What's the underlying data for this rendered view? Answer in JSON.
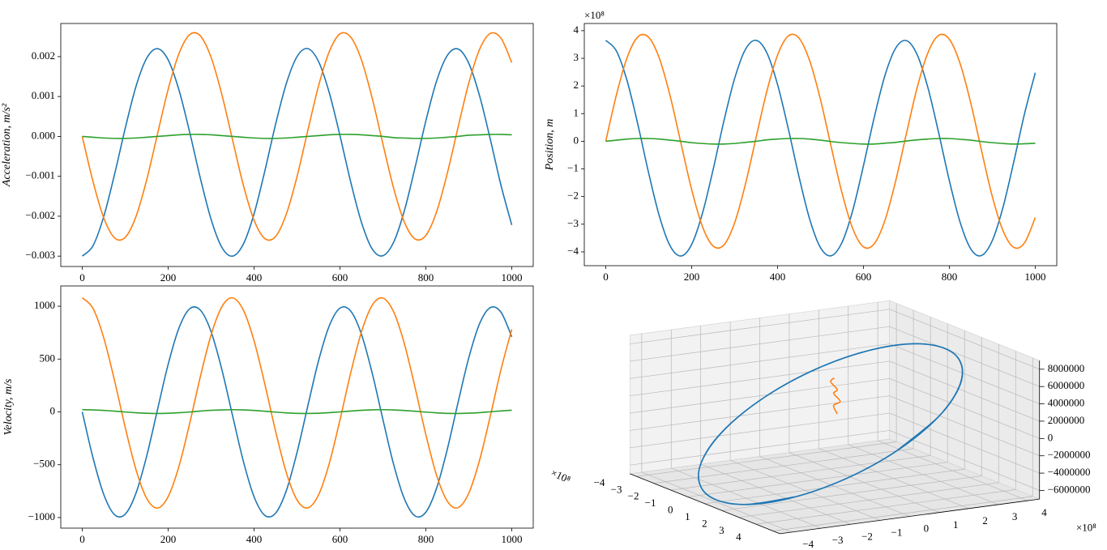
{
  "chart_data": [
    {
      "type": "line",
      "ylabel": "Acceleration, m/s²",
      "x": [
        0,
        25,
        50,
        75,
        100,
        125,
        150,
        175,
        200,
        225,
        250,
        275,
        300,
        325,
        350,
        375,
        400,
        425,
        450,
        475,
        500,
        525,
        550,
        575,
        600,
        625,
        650,
        675,
        700,
        725,
        750,
        775,
        800,
        825,
        850,
        875,
        900,
        925,
        950,
        975,
        1000
      ],
      "series": [
        {
          "color": "#1f77b4",
          "values": [
            -0.003,
            -0.00274,
            -0.00201,
            -0.00096,
            0.0002,
            0.00125,
            0.00196,
            0.0022,
            0.00192,
            0.00117,
            0.00011,
            -0.00105,
            -0.00208,
            -0.00278,
            -0.003,
            -0.0027,
            -0.00194,
            -0.00087,
            0.0003,
            0.00132,
            0.002,
            0.0022,
            0.00188,
            0.0011,
            2e-05,
            -0.00114,
            -0.00215,
            -0.00282,
            -0.00299,
            -0.00265,
            -0.00186,
            -0.00077,
            0.00039,
            0.00139,
            0.00203,
            0.00219,
            0.00183,
            0.00102,
            -7e-05,
            -0.00123,
            -0.00222
          ]
        },
        {
          "color": "#ff7f0e",
          "values": [
            0,
            -0.00113,
            -0.00204,
            -0.00254,
            -0.00253,
            -0.00201,
            -0.00109,
            5e-05,
            0.00118,
            0.00207,
            0.00255,
            0.00252,
            0.00198,
            0.00105,
            -9e-05,
            -0.00122,
            -0.0021,
            -0.00256,
            -0.00251,
            -0.00195,
            -0.00101,
            0.00014,
            0.00126,
            0.00212,
            0.00257,
            0.00249,
            0.00192,
            0.00096,
            -0.00019,
            -0.0013,
            -0.00215,
            -0.00257,
            -0.00248,
            -0.00189,
            -0.00092,
            0.00023,
            0.00134,
            0.00218,
            0.00258,
            0.00246,
            0.00185
          ]
        },
        {
          "color": "#2ca02c",
          "values": [
            0,
            -2e-05,
            -4e-05,
            -5e-05,
            -5e-05,
            -4e-05,
            -2e-05,
            0,
            2e-05,
            4e-05,
            5e-05,
            5e-05,
            4e-05,
            2e-05,
            0,
            -2e-05,
            -4e-05,
            -5e-05,
            -5e-05,
            -4e-05,
            -2e-05,
            0,
            2e-05,
            4e-05,
            5e-05,
            5e-05,
            4e-05,
            2e-05,
            0,
            -3e-05,
            -4e-05,
            -5e-05,
            -5e-05,
            -4e-05,
            -2e-05,
            0,
            3e-05,
            4e-05,
            5e-05,
            5e-05,
            4e-05
          ]
        }
      ],
      "xlim": [
        -50,
        1050
      ],
      "ylim": [
        -0.00326,
        0.00283
      ],
      "xticks": [
        0,
        200,
        400,
        600,
        800,
        1000
      ],
      "yticks": [
        {
          "value": -0.003,
          "label": "−0.003"
        },
        {
          "value": -0.002,
          "label": "−0.002"
        },
        {
          "value": -0.001,
          "label": "−0.001"
        },
        {
          "value": 0,
          "label": "0.000"
        },
        0.001,
        0.002
      ]
    },
    {
      "type": "line",
      "ylabel": "Position, m",
      "yoffset": "×10⁸",
      "x": [
        0,
        25,
        50,
        75,
        100,
        125,
        150,
        175,
        200,
        225,
        250,
        275,
        300,
        325,
        350,
        375,
        400,
        425,
        450,
        475,
        500,
        525,
        550,
        575,
        600,
        625,
        650,
        675,
        700,
        725,
        750,
        775,
        800,
        825,
        850,
        875,
        900,
        925,
        950,
        975,
        1000
      ],
      "series": [
        {
          "color": "#1f77b4",
          "values": [
            3.65,
            3.26,
            2.17,
            0.59,
            -1.16,
            -2.72,
            -3.79,
            -4.15,
            -3.73,
            -2.61,
            -1.02,
            0.73,
            2.27,
            3.32,
            3.65,
            3.2,
            2.05,
            0.45,
            -1.29,
            -2.83,
            -3.85,
            -4.14,
            -3.66,
            -2.5,
            -0.88,
            0.86,
            2.38,
            3.37,
            3.64,
            3.13,
            1.94,
            0.31,
            -1.43,
            -2.93,
            -3.9,
            -4.13,
            -3.59,
            -2.38,
            -0.74,
            1.0,
            2.48
          ]
        },
        {
          "color": "#ff7f0e",
          "values": [
            0,
            1.69,
            3.04,
            3.78,
            3.76,
            2.99,
            1.63,
            -0.07,
            -1.75,
            -3.08,
            -3.79,
            -3.75,
            -2.95,
            -1.56,
            0.14,
            1.81,
            3.12,
            3.81,
            3.73,
            2.9,
            1.5,
            -0.21,
            -1.87,
            -3.16,
            -3.82,
            -3.71,
            -2.86,
            -1.43,
            0.28,
            1.94,
            3.2,
            3.83,
            3.69,
            2.81,
            1.37,
            -0.35,
            -2.0,
            -3.24,
            -3.84,
            -3.67,
            -2.76
          ]
        },
        {
          "color": "#2ca02c",
          "values": [
            0,
            0.04,
            0.08,
            0.1,
            0.1,
            0.08,
            0.04,
            0,
            -0.05,
            -0.08,
            -0.1,
            -0.1,
            -0.08,
            -0.04,
            0,
            0.05,
            0.08,
            0.1,
            0.1,
            0.08,
            0.04,
            -0.01,
            -0.05,
            -0.08,
            -0.1,
            -0.1,
            -0.07,
            -0.04,
            0.01,
            0.05,
            0.08,
            0.1,
            0.1,
            0.07,
            0.04,
            -0.01,
            -0.05,
            -0.08,
            -0.1,
            -0.09,
            -0.07
          ]
        }
      ],
      "xlim": [
        -50,
        1050
      ],
      "ylim": [
        -4.5,
        4.26
      ],
      "xticks": [
        0,
        200,
        400,
        600,
        800,
        1000
      ],
      "yticks": [
        {
          "value": -4,
          "label": "−4"
        },
        {
          "value": -3,
          "label": "−3"
        },
        {
          "value": -2,
          "label": "−2"
        },
        {
          "value": -1,
          "label": "−1"
        },
        0,
        1,
        2,
        3,
        4
      ]
    },
    {
      "type": "line",
      "ylabel": "Velocity, m/s",
      "x": [
        0,
        25,
        50,
        75,
        100,
        125,
        150,
        175,
        200,
        225,
        250,
        275,
        300,
        325,
        350,
        375,
        400,
        425,
        450,
        475,
        500,
        525,
        550,
        575,
        600,
        625,
        650,
        675,
        700,
        725,
        750,
        775,
        800,
        825,
        850,
        875,
        900,
        925,
        950,
        975,
        1000
      ],
      "series": [
        {
          "color": "#1f77b4",
          "values": [
            0,
            -434,
            -781,
            -972,
            -968,
            -770,
            -418,
            18,
            450,
            792,
            975,
            963,
            759,
            401,
            -36,
            -466,
            -803,
            -979,
            -959,
            -747,
            -385,
            54,
            482,
            813,
            982,
            954,
            735,
            368,
            -72,
            -498,
            -823,
            -985,
            -949,
            -722,
            -352,
            90,
            513,
            834,
            987,
            943,
            710
          ]
        },
        {
          "color": "#ff7f0e",
          "values": [
            1080,
            980,
            701,
            299,
            -146,
            -545,
            -818,
            -910,
            -802,
            -517,
            -111,
            334,
            729,
            995,
            1079,
            964,
            673,
            264,
            -181,
            -573,
            -833,
            -908,
            -786,
            -489,
            -76,
            368,
            756,
            1009,
            1077,
            947,
            644,
            228,
            -216,
            -600,
            -846,
            -906,
            -768,
            -458,
            -40,
            403,
            782
          ]
        },
        {
          "color": "#2ca02c",
          "values": [
            21,
            19,
            14,
            7,
            -1,
            -8,
            -13,
            -15,
            -13,
            -8,
            -1,
            8,
            15,
            19,
            21,
            19,
            14,
            6,
            -2,
            -9,
            -14,
            -15,
            -13,
            -7,
            0,
            8,
            15,
            20,
            21,
            19,
            13,
            6,
            -2,
            -9,
            -14,
            -15,
            -12,
            -7,
            1,
            9,
            16
          ]
        }
      ],
      "xlim": [
        -50,
        1050
      ],
      "ylim": [
        -1100,
        1192
      ],
      "xticks": [
        0,
        200,
        400,
        600,
        800,
        1000
      ],
      "yticks": [
        {
          "value": -1000,
          "label": "−1000"
        },
        {
          "value": -500,
          "label": "−500"
        },
        0,
        500,
        1000
      ]
    },
    {
      "type": "line3d",
      "xoffset": "×10⁸",
      "yoffset": "×10⁸",
      "series": [
        {
          "color": "#1f77b4",
          "x": [
            3.65,
            3.26,
            2.17,
            0.59,
            -1.16,
            -2.72,
            -3.79,
            -4.15,
            -3.73,
            -2.61,
            -1.02,
            0.73,
            2.27,
            3.32,
            3.65,
            3.2,
            2.05,
            0.45,
            -1.29,
            -2.83,
            -3.85,
            -4.14,
            -3.66,
            -2.5,
            -0.88,
            0.86,
            2.38,
            3.37,
            3.64,
            3.13,
            1.94,
            0.31,
            -1.43,
            -2.93,
            -3.9,
            -4.13,
            -3.59,
            -2.38,
            -0.74,
            1.0,
            2.48
          ],
          "y": [
            0,
            1.69,
            3.04,
            3.78,
            3.76,
            2.99,
            1.63,
            -0.07,
            -1.75,
            -3.08,
            -3.79,
            -3.75,
            -2.95,
            -1.56,
            0.14,
            1.81,
            3.12,
            3.81,
            3.73,
            2.9,
            1.5,
            -0.21,
            -1.87,
            -3.16,
            -3.82,
            -3.71,
            -2.86,
            -1.43,
            0.28,
            1.94,
            3.2,
            3.83,
            3.69,
            2.81,
            1.37,
            -0.35,
            -2.0,
            -3.24,
            -3.84,
            -3.67,
            -2.76
          ],
          "z": [
            0,
            3050000,
            5500000,
            6840000,
            6810000,
            5420000,
            2940000,
            -130000,
            -3170000,
            -5570000,
            -6860000,
            -6780000,
            -5340000,
            -2820000,
            250000,
            3280000,
            5650000,
            6890000,
            6750000,
            5250000,
            2710000,
            -380000,
            -3390000,
            -5720000,
            -6910000,
            -6710000,
            -5170000,
            -2590000,
            510000,
            3500000,
            5790000,
            6930000,
            6670000,
            5080000,
            2470000,
            -630000,
            -3610000,
            -5860000,
            -6940000,
            -6630000,
            -4990000
          ]
        },
        {
          "color": "#ff7f0e",
          "x": [
            0.15,
            -0.15,
            0.15,
            -0.15,
            0.15,
            -0.15,
            0.15
          ],
          "y": [
            0,
            0.05,
            0.1,
            0.05,
            0,
            -0.05,
            -0.1
          ],
          "z": [
            1500000,
            2200000,
            2900000,
            3600000,
            4300000,
            5000000,
            5700000
          ]
        }
      ],
      "xlim": [
        -4.4,
        4.4
      ],
      "ylim": [
        -4.4,
        4.4
      ],
      "zlim": [
        -7000000,
        9000000
      ],
      "xticks": [
        {
          "value": -4,
          "label": "−4"
        },
        {
          "value": -3,
          "label": "−3"
        },
        {
          "value": -2,
          "label": "−2"
        },
        {
          "value": -1,
          "label": "−1"
        },
        0,
        1,
        2,
        3,
        4
      ],
      "yticks": [
        {
          "value": -4,
          "label": "−4"
        },
        {
          "value": -3,
          "label": "−3"
        },
        {
          "value": -2,
          "label": "−2"
        },
        {
          "value": -1,
          "label": "−1"
        },
        0,
        1,
        2,
        3,
        4
      ],
      "zticks": [
        {
          "value": -6000000,
          "label": "−6000000"
        },
        {
          "value": -4000000,
          "label": "−4000000"
        },
        {
          "value": -2000000,
          "label": "−2000000"
        },
        0,
        2000000,
        4000000,
        6000000,
        8000000
      ]
    }
  ]
}
